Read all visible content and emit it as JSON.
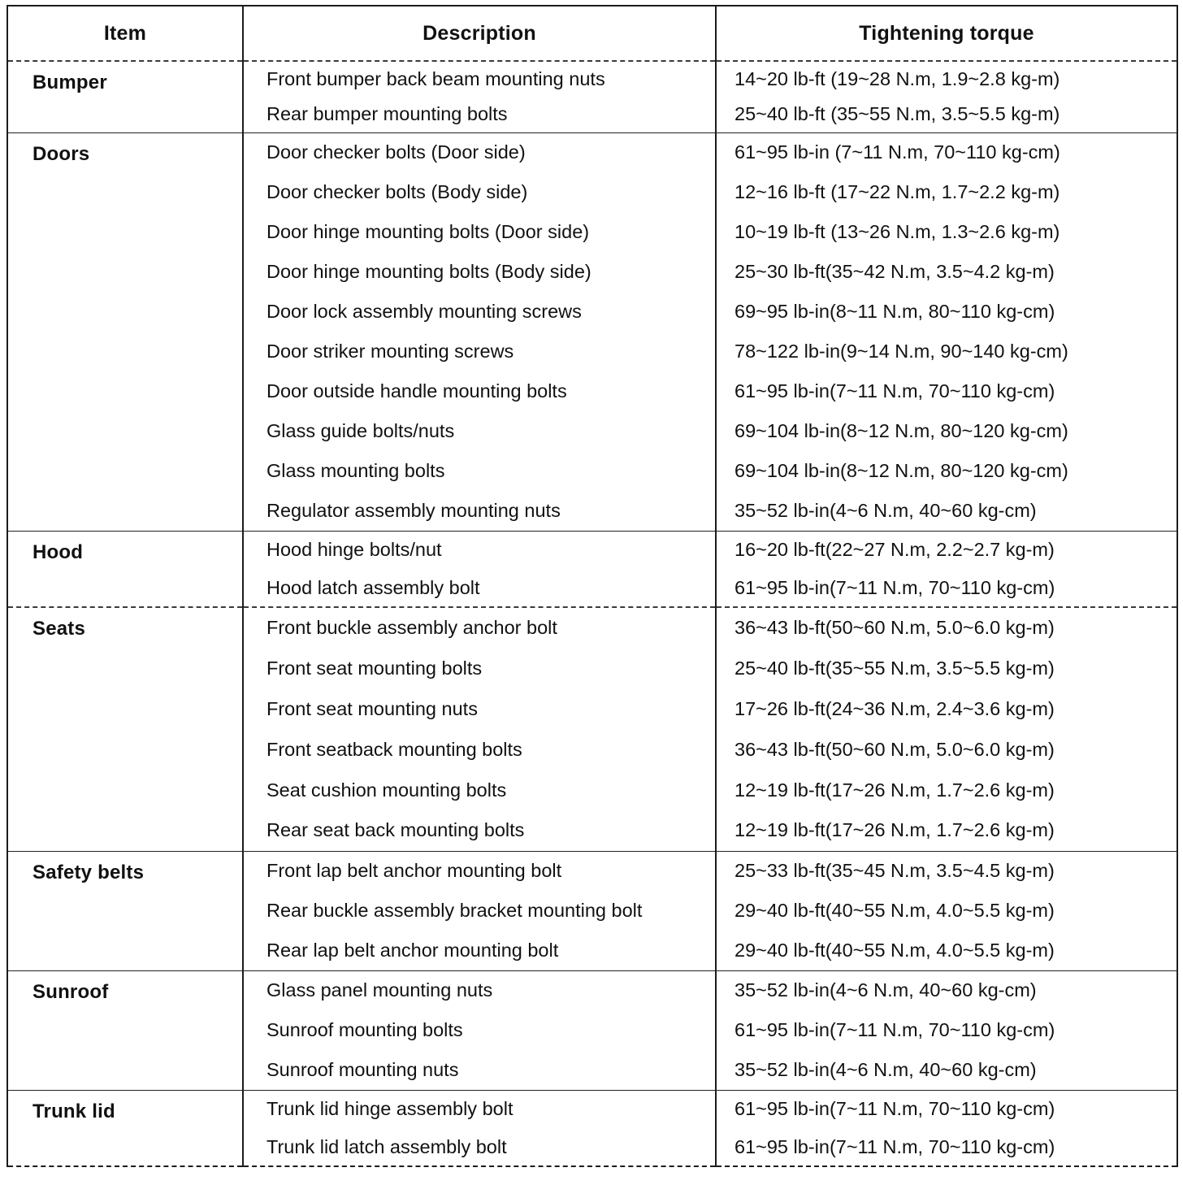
{
  "table": {
    "headers": {
      "item": "Item",
      "description": "Description",
      "torque": "Tightening torque"
    },
    "sections": [
      {
        "item": "Bumper",
        "rows": [
          {
            "description": "Front bumper back beam mounting nuts",
            "torque": "14~20 lb-ft (19~28 N.m, 1.9~2.8 kg-m)"
          },
          {
            "description": "Rear bumper mounting bolts",
            "torque": "25~40 lb-ft (35~55 N.m, 3.5~5.5 kg-m)"
          }
        ]
      },
      {
        "item": "Doors",
        "rows": [
          {
            "description": "Door checker bolts (Door side)",
            "torque": "61~95 lb-in (7~11 N.m, 70~110 kg-cm)"
          },
          {
            "description": "Door checker bolts (Body side)",
            "torque": "12~16 lb-ft (17~22 N.m, 1.7~2.2 kg-m)"
          },
          {
            "description": "Door hinge mounting bolts (Door side)",
            "torque": "10~19 lb-ft (13~26 N.m, 1.3~2.6 kg-m)"
          },
          {
            "description": "Door hinge mounting bolts (Body side)",
            "torque": "25~30 lb-ft(35~42 N.m, 3.5~4.2 kg-m)"
          },
          {
            "description": "Door lock assembly mounting screws",
            "torque": "69~95 lb-in(8~11 N.m, 80~110 kg-cm)"
          },
          {
            "description": "Door striker mounting screws",
            "torque": "78~122 lb-in(9~14 N.m, 90~140 kg-cm)"
          },
          {
            "description": "Door outside handle mounting bolts",
            "torque": "61~95 lb-in(7~11 N.m, 70~110 kg-cm)"
          },
          {
            "description": "Glass guide bolts/nuts",
            "torque": "69~104 lb-in(8~12 N.m, 80~120 kg-cm)"
          },
          {
            "description": "Glass mounting bolts",
            "torque": "69~104 lb-in(8~12 N.m, 80~120 kg-cm)"
          },
          {
            "description": "Regulator assembly mounting nuts",
            "torque": "35~52 lb-in(4~6 N.m, 40~60 kg-cm)"
          }
        ]
      },
      {
        "item": "Hood",
        "rows": [
          {
            "description": "Hood hinge bolts/nut",
            "torque": "16~20 lb-ft(22~27 N.m, 2.2~2.7 kg-m)"
          },
          {
            "description": "Hood latch assembly bolt",
            "torque": "61~95 lb-in(7~11 N.m, 70~110 kg-cm)"
          }
        ]
      },
      {
        "item": "Seats",
        "rows": [
          {
            "description": "Front buckle assembly anchor bolt",
            "torque": "36~43 lb-ft(50~60 N.m, 5.0~6.0 kg-m)"
          },
          {
            "description": "Front seat mounting bolts",
            "torque": "25~40 lb-ft(35~55 N.m, 3.5~5.5 kg-m)"
          },
          {
            "description": "Front seat mounting nuts",
            "torque": "17~26 lb-ft(24~36 N.m, 2.4~3.6 kg-m)"
          },
          {
            "description": "Front seatback mounting bolts",
            "torque": "36~43 lb-ft(50~60 N.m, 5.0~6.0 kg-m)"
          },
          {
            "description": "Seat cushion mounting bolts",
            "torque": "12~19 lb-ft(17~26 N.m, 1.7~2.6 kg-m)"
          },
          {
            "description": "Rear seat back mounting bolts",
            "torque": "12~19 lb-ft(17~26 N.m, 1.7~2.6 kg-m)"
          }
        ]
      },
      {
        "item": "Safety belts",
        "rows": [
          {
            "description": "Front lap belt anchor mounting bolt",
            "torque": "25~33 lb-ft(35~45 N.m, 3.5~4.5 kg-m)"
          },
          {
            "description": "Rear buckle assembly bracket mounting bolt",
            "torque": "29~40 lb-ft(40~55 N.m, 4.0~5.5 kg-m)"
          },
          {
            "description": "Rear lap belt anchor mounting bolt",
            "torque": "29~40 lb-ft(40~55 N.m, 4.0~5.5 kg-m)"
          }
        ]
      },
      {
        "item": "Sunroof",
        "rows": [
          {
            "description": "Glass panel mounting nuts",
            "torque": "35~52 lb-in(4~6 N.m, 40~60 kg-cm)"
          },
          {
            "description": "Sunroof mounting bolts",
            "torque": "61~95 lb-in(7~11 N.m, 70~110 kg-cm)"
          },
          {
            "description": "Sunroof mounting nuts",
            "torque": "35~52 lb-in(4~6 N.m, 40~60 kg-cm)"
          }
        ]
      },
      {
        "item": "Trunk lid",
        "rows": [
          {
            "description": "Trunk lid hinge assembly bolt",
            "torque": "61~95 lb-in(7~11 N.m, 70~110 kg-cm)"
          },
          {
            "description": "Trunk lid latch assembly bolt",
            "torque": "61~95 lb-in(7~11 N.m, 70~110 kg-cm)"
          }
        ]
      }
    ]
  }
}
